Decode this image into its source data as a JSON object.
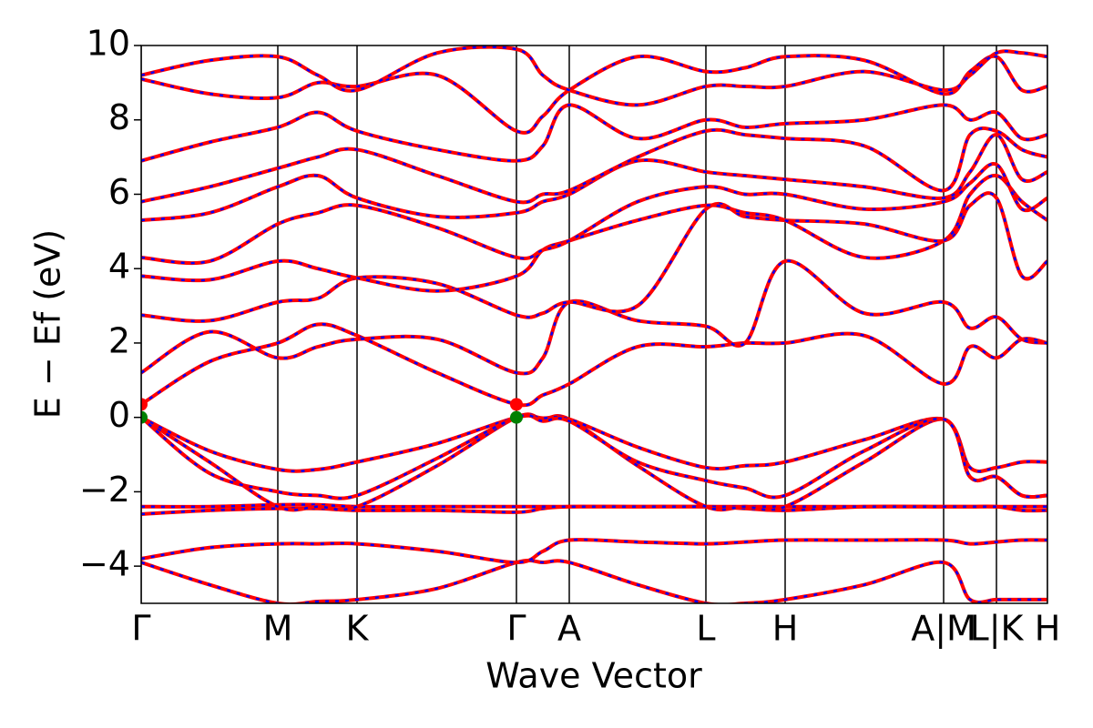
{
  "chart_data": {
    "type": "line",
    "xlabel": "Wave Vector",
    "ylabel": "E − Ef (eV)",
    "xlim": [
      0,
      9.95
    ],
    "ylim": [
      -5,
      10
    ],
    "xticks": [
      {
        "value": 0,
        "label": "Γ"
      },
      {
        "value": 1.5,
        "label": "M"
      },
      {
        "value": 2.37,
        "label": "K"
      },
      {
        "value": 4.12,
        "label": "Γ"
      },
      {
        "value": 4.7,
        "label": "A"
      },
      {
        "value": 6.2,
        "label": "L"
      },
      {
        "value": 7.07,
        "label": "H"
      },
      {
        "value": 8.81,
        "label": "A|M"
      },
      {
        "value": 9.39,
        "label": "L|K"
      },
      {
        "value": 9.95,
        "label": "H"
      }
    ],
    "yticks": [
      {
        "value": -4,
        "label": "−4"
      },
      {
        "value": -2,
        "label": "−2"
      },
      0,
      2,
      4,
      6,
      8,
      10
    ],
    "dash_color": "#0000ff",
    "x": [
      0,
      0.75,
      1.5,
      1.94,
      2.37,
      3.25,
      4.12,
      4.41,
      4.7,
      5.45,
      6.2,
      6.63,
      7.07,
      7.94,
      8.81,
      9.1,
      9.39,
      9.67,
      9.95
    ],
    "series": [
      {
        "color": "#ff0000",
        "values": [
          -3.9,
          -4.5,
          -5.0,
          -4.95,
          -4.9,
          -4.6,
          -3.9,
          -3.9,
          -3.9,
          -4.5,
          -5.0,
          -5.0,
          -4.9,
          -4.5,
          -3.9,
          -4.9,
          -4.9,
          -4.9,
          -4.9
        ]
      },
      {
        "color": "#ff0000",
        "values": [
          -3.8,
          -3.5,
          -3.4,
          -3.4,
          -3.4,
          -3.6,
          -3.9,
          -3.6,
          -3.3,
          -3.35,
          -3.4,
          -3.35,
          -3.3,
          -3.3,
          -3.3,
          -3.4,
          -3.35,
          -3.3,
          -3.3
        ]
      },
      {
        "color": "#ff0000",
        "values": [
          -2.6,
          -2.5,
          -2.45,
          -2.45,
          -2.5,
          -2.5,
          -2.55,
          -2.45,
          -2.4,
          -2.4,
          -2.4,
          -2.45,
          -2.5,
          -2.4,
          -2.4,
          -2.4,
          -2.4,
          -2.5,
          -2.5
        ]
      },
      {
        "color": "#ff0000",
        "values": [
          -2.4,
          -2.4,
          -2.35,
          -2.35,
          -2.4,
          -2.4,
          -2.4,
          -2.4,
          -2.4,
          -2.4,
          -2.4,
          -2.4,
          -2.4,
          -2.4,
          -2.4,
          -2.4,
          -2.4,
          -2.4,
          -2.4
        ]
      },
      {
        "color": "#ff0000",
        "values": [
          0,
          -1.2,
          -2.4,
          -2.4,
          -2.4,
          -1.3,
          0,
          -0.05,
          -0.05,
          -1.3,
          -2.4,
          -2.4,
          -2.4,
          -1.2,
          -0.05,
          -1.6,
          -1.6,
          -2.1,
          -2.1
        ]
      },
      {
        "color": "#ff0000",
        "values": [
          0,
          -0.9,
          -1.4,
          -1.4,
          -1.2,
          -0.7,
          0,
          -0.02,
          -0.05,
          -0.8,
          -1.35,
          -1.3,
          -1.2,
          -0.6,
          -0.05,
          -1.35,
          -1.35,
          -1.2,
          -1.2
        ]
      },
      {
        "color": "#ff0000",
        "values": [
          0,
          -1.5,
          -2.0,
          -2.1,
          -2.1,
          -1.1,
          0,
          -0.1,
          -0.1,
          -1.2,
          -1.7,
          -1.9,
          -2.1,
          -0.9,
          -0.05,
          -1.6,
          -1.6,
          -2.1,
          -2.1
        ]
      },
      {
        "color": "#ff0000",
        "values": [
          0.35,
          1.5,
          2.0,
          2.5,
          2.2,
          1.2,
          0.35,
          0.6,
          0.9,
          1.9,
          1.9,
          2.0,
          2.0,
          2.2,
          0.9,
          1.9,
          1.6,
          2.1,
          2.0
        ]
      },
      {
        "color": "#ff0000",
        "values": [
          1.2,
          2.3,
          1.6,
          1.9,
          2.1,
          2.1,
          1.2,
          1.6,
          3.1,
          2.6,
          2.45,
          2.0,
          4.2,
          2.8,
          3.1,
          2.4,
          2.7,
          2.1,
          2.0
        ]
      },
      {
        "color": "#ff0000",
        "values": [
          2.75,
          2.6,
          3.1,
          3.2,
          3.75,
          3.6,
          2.75,
          2.8,
          3.1,
          3.0,
          5.6,
          5.4,
          5.3,
          5.2,
          4.75,
          5.7,
          5.9,
          3.8,
          4.2
        ]
      },
      {
        "color": "#ff0000",
        "values": [
          3.8,
          3.7,
          4.2,
          4.0,
          3.75,
          3.4,
          3.8,
          4.5,
          4.75,
          5.3,
          5.7,
          5.5,
          5.3,
          4.3,
          4.75,
          6.0,
          6.5,
          5.8,
          5.3
        ]
      },
      {
        "color": "#ff0000",
        "values": [
          4.3,
          4.2,
          5.2,
          5.5,
          5.7,
          5.1,
          4.3,
          4.5,
          4.75,
          5.8,
          6.2,
          6.0,
          6.0,
          5.6,
          5.8,
          6.3,
          6.8,
          5.6,
          5.9
        ]
      },
      {
        "color": "#ff0000",
        "values": [
          5.3,
          5.5,
          6.2,
          6.5,
          5.9,
          5.4,
          5.5,
          5.8,
          6.0,
          6.9,
          6.6,
          6.5,
          6.4,
          6.2,
          5.9,
          6.6,
          7.6,
          6.4,
          6.6
        ]
      },
      {
        "color": "#ff0000",
        "values": [
          5.8,
          6.2,
          6.7,
          7.0,
          7.2,
          6.5,
          5.8,
          6.0,
          6.1,
          7.0,
          7.7,
          7.6,
          7.5,
          7.3,
          6.1,
          7.6,
          7.7,
          7.2,
          7.0
        ]
      },
      {
        "color": "#ff0000",
        "values": [
          6.9,
          7.4,
          7.8,
          8.2,
          7.7,
          7.2,
          6.9,
          7.3,
          8.4,
          7.5,
          8.0,
          7.8,
          7.9,
          8.0,
          8.4,
          8.0,
          8.2,
          7.5,
          7.6
        ]
      },
      {
        "color": "#ff0000",
        "values": [
          9.1,
          8.7,
          8.6,
          9.0,
          8.9,
          9.2,
          7.7,
          8.1,
          8.8,
          9.7,
          9.3,
          9.4,
          9.7,
          9.6,
          8.7,
          9.3,
          9.7,
          8.8,
          8.9
        ]
      },
      {
        "color": "#ff0000",
        "values": [
          9.2,
          9.6,
          9.7,
          9.2,
          8.8,
          9.8,
          9.9,
          9.2,
          8.8,
          8.4,
          8.9,
          8.9,
          8.9,
          9.3,
          8.8,
          9.2,
          9.8,
          9.8,
          9.7
        ]
      }
    ],
    "markers": {
      "x": [
        0,
        4.12,
        0,
        4.12
      ],
      "y": [
        0.35,
        0.35,
        0,
        0
      ],
      "colors": [
        "#ff0000",
        "#ff0000",
        "#008000",
        "#008000"
      ]
    }
  }
}
